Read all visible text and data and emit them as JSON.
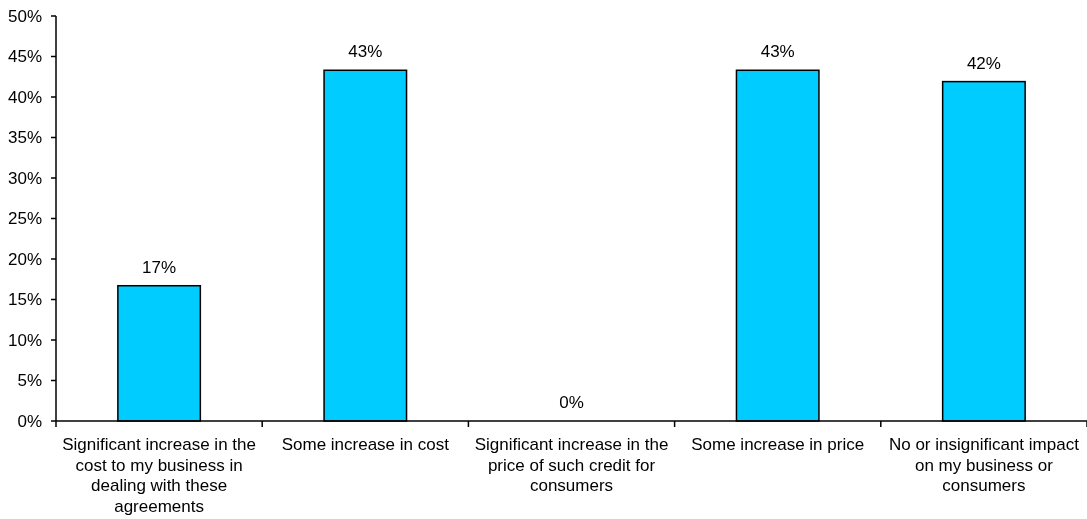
{
  "chart_data": {
    "type": "bar",
    "categories": [
      "Significant increase in the cost to my business in dealing with these agreements",
      "Some increase in cost",
      "Significant increase in the price of such credit for consumers",
      "Some increase in price",
      "No or insignificant impact on my business or consumers"
    ],
    "values": [
      16.7,
      43.3,
      0,
      43.3,
      41.9
    ],
    "value_labels": [
      "17%",
      "43%",
      "0%",
      "43%",
      "42%"
    ],
    "color": "#00ccff",
    "ylim": [
      0,
      50
    ],
    "yticks": [
      {
        "value": 0,
        "label": "0%"
      },
      {
        "value": 5,
        "label": "5%"
      },
      {
        "value": 10,
        "label": "10%"
      },
      {
        "value": 15,
        "label": "15%"
      },
      {
        "value": 20,
        "label": "20%"
      },
      {
        "value": 25,
        "label": "25%"
      },
      {
        "value": 30,
        "label": "30%"
      },
      {
        "value": 35,
        "label": "35%"
      },
      {
        "value": 40,
        "label": "40%"
      },
      {
        "value": 45,
        "label": "45%"
      },
      {
        "value": 50,
        "label": "50%"
      }
    ]
  }
}
